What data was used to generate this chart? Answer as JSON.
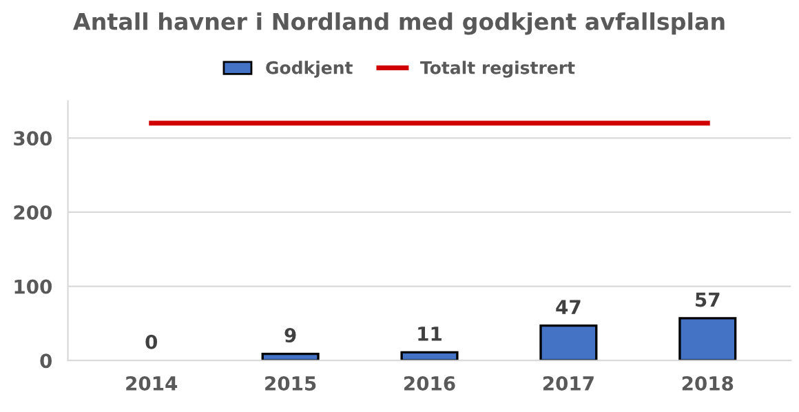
{
  "chart_data": {
    "type": "bar",
    "title": "Antall havner i Nordland med godkjent avfallsplan",
    "categories": [
      "2014",
      "2015",
      "2016",
      "2017",
      "2018"
    ],
    "series": [
      {
        "name": "Godkjent",
        "color": "#4472c4",
        "values": [
          0,
          9,
          11,
          47,
          57
        ],
        "value_labels": [
          "0",
          "9",
          "11",
          "47",
          "57"
        ]
      },
      {
        "name": "Totalt registrert",
        "type": "line",
        "color": "#d00000",
        "values": [
          320,
          320,
          320,
          320,
          320
        ]
      }
    ],
    "ylim": [
      0,
      350
    ],
    "yticks": [
      0,
      100,
      200,
      300
    ],
    "grid": "y",
    "legend": "top"
  }
}
